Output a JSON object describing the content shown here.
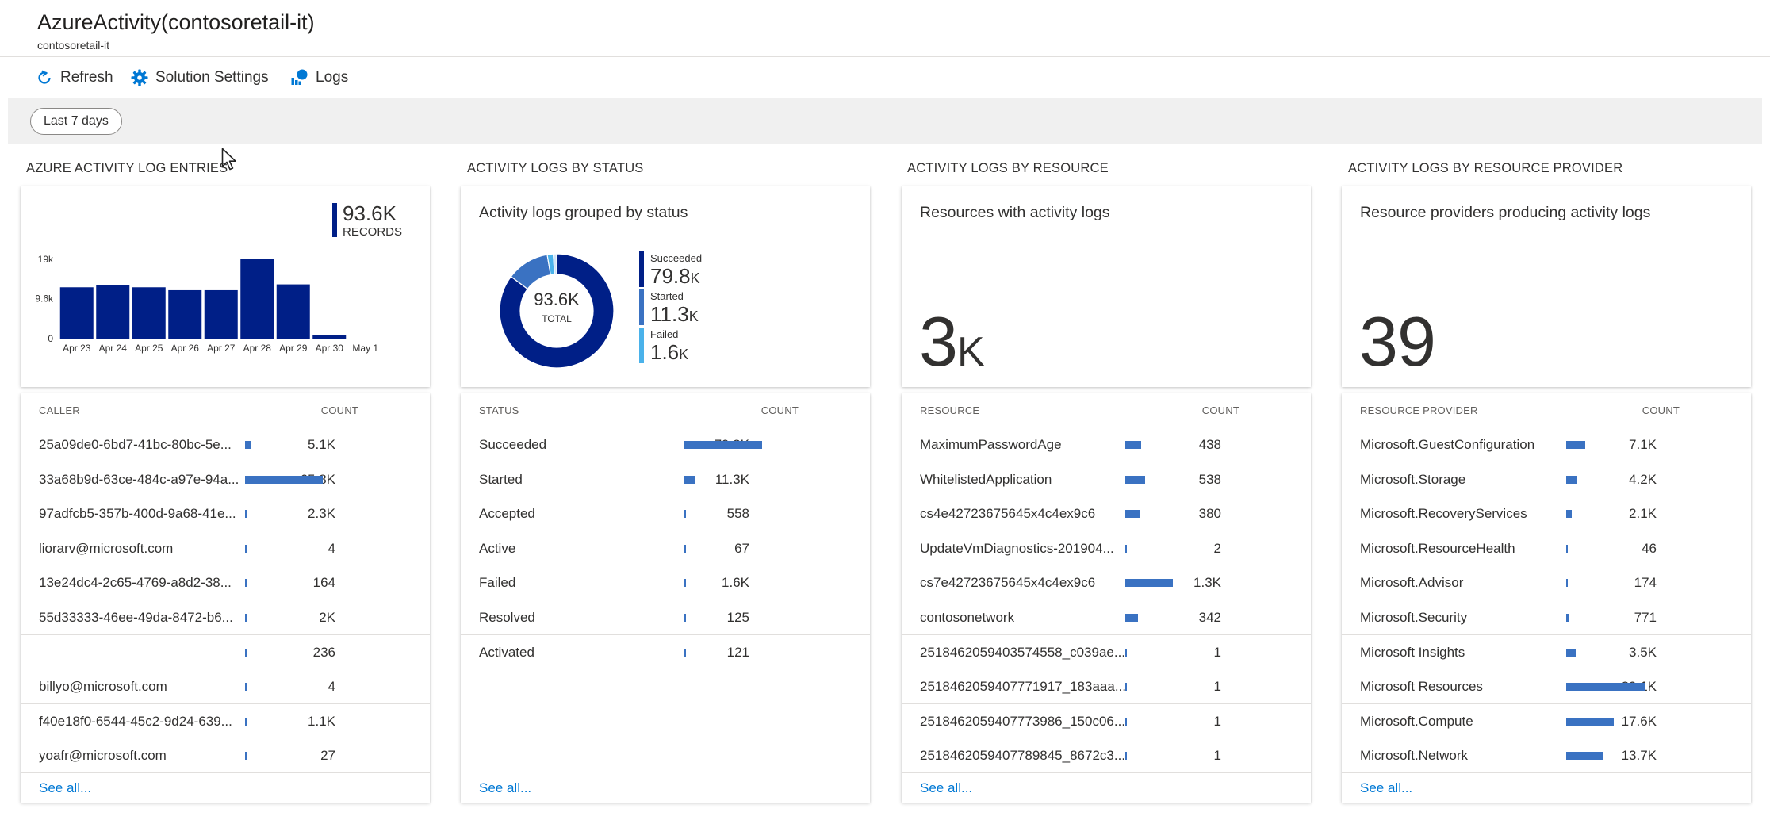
{
  "header": {
    "title": "AzureActivity(contosoretail-it)",
    "subtitle": "contosoretail-it"
  },
  "toolbar": {
    "refresh_label": "Refresh",
    "settings_label": "Solution Settings",
    "logs_label": "Logs"
  },
  "filter": {
    "time_range": "Last 7 days"
  },
  "colors": {
    "accent": "#0078d4",
    "dark_bar": "#001f87",
    "list_bar": "#3a72c2",
    "started": "#3a72c2",
    "failed": "#4ab2ea",
    "pending": "#cfe4f7"
  },
  "panels": {
    "entries": {
      "section_title": "AZURE ACTIVITY LOG ENTRIES",
      "total": "93.6K",
      "total_label": "RECORDS",
      "col_name": "CALLER",
      "col_count": "COUNT",
      "rows": [
        {
          "name": "25a09de0-6bd7-41bc-80bc-5e...",
          "count": "5.1K",
          "value": 5100
        },
        {
          "name": "33a68b9d-63ce-484c-a97e-94a...",
          "count": "65.8K",
          "value": 65800
        },
        {
          "name": "97adfcb5-357b-400d-9a68-41e...",
          "count": "2.3K",
          "value": 2300
        },
        {
          "name": "liorarv@microsoft.com",
          "count": "4",
          "value": 4
        },
        {
          "name": "13e24dc4-2c65-4769-a8d2-38...",
          "count": "164",
          "value": 164
        },
        {
          "name": "55d33333-46ee-49da-8472-b6...",
          "count": "2K",
          "value": 2000
        },
        {
          "name": "",
          "count": "236",
          "value": 236
        },
        {
          "name": "billyo@microsoft.com",
          "count": "4",
          "value": 4
        },
        {
          "name": "f40e18f0-6544-45c2-9d24-639...",
          "count": "1.1K",
          "value": 1100
        },
        {
          "name": "yoafr@microsoft.com",
          "count": "27",
          "value": 27
        }
      ],
      "see_all": "See all..."
    },
    "status": {
      "section_title": "ACTIVITY LOGS BY STATUS",
      "heading": "Activity logs grouped by status",
      "total": "93.6K",
      "total_label": "TOTAL",
      "legend": [
        {
          "label": "Succeeded",
          "num": "79.8",
          "unit": "K",
          "value": 79800,
          "color": "#001f87"
        },
        {
          "label": "Started",
          "num": "11.3",
          "unit": "K",
          "value": 11300,
          "color": "#3a72c2"
        },
        {
          "label": "Failed",
          "num": "1.6",
          "unit": "K",
          "value": 1600,
          "color": "#4ab2ea"
        }
      ],
      "col_name": "STATUS",
      "col_count": "COUNT",
      "rows": [
        {
          "name": "Succeeded",
          "count": "79.8K",
          "value": 79800
        },
        {
          "name": "Started",
          "count": "11.3K",
          "value": 11300
        },
        {
          "name": "Accepted",
          "count": "558",
          "value": 558
        },
        {
          "name": "Active",
          "count": "67",
          "value": 67
        },
        {
          "name": "Failed",
          "count": "1.6K",
          "value": 1600
        },
        {
          "name": "Resolved",
          "count": "125",
          "value": 125
        },
        {
          "name": "Activated",
          "count": "121",
          "value": 121
        }
      ],
      "see_all": "See all..."
    },
    "resource": {
      "section_title": "ACTIVITY LOGS BY RESOURCE",
      "heading": "Resources with activity logs",
      "big_number": "3",
      "big_unit": "K",
      "col_name": "RESOURCE",
      "col_count": "COUNT",
      "rows": [
        {
          "name": "MaximumPasswordAge",
          "count": "438",
          "value": 438
        },
        {
          "name": "WhitelistedApplication",
          "count": "538",
          "value": 538
        },
        {
          "name": "cs4e42723675645x4c4ex9c6",
          "count": "380",
          "value": 380
        },
        {
          "name": "UpdateVmDiagnostics-201904...",
          "count": "2",
          "value": 2
        },
        {
          "name": "cs7e42723675645x4c4ex9c6",
          "count": "1.3K",
          "value": 1300
        },
        {
          "name": "contosonetwork",
          "count": "342",
          "value": 342
        },
        {
          "name": "2518462059403574558_c039ae...",
          "count": "1",
          "value": 1
        },
        {
          "name": "2518462059407771917_183aaa...",
          "count": "1",
          "value": 1
        },
        {
          "name": "2518462059407773986_150c06...",
          "count": "1",
          "value": 1
        },
        {
          "name": "2518462059407789845_8672c3...",
          "count": "1",
          "value": 1
        }
      ],
      "see_all": "See all..."
    },
    "provider": {
      "section_title": "ACTIVITY LOGS BY RESOURCE PROVIDER",
      "heading": "Resource providers producing activity logs",
      "big_number": "39",
      "col_name": "RESOURCE PROVIDER",
      "col_count": "COUNT",
      "rows": [
        {
          "name": "Microsoft.GuestConfiguration",
          "count": "7.1K",
          "value": 7100
        },
        {
          "name": "Microsoft.Storage",
          "count": "4.2K",
          "value": 4200
        },
        {
          "name": "Microsoft.RecoveryServices",
          "count": "2.1K",
          "value": 2100
        },
        {
          "name": "Microsoft.ResourceHealth",
          "count": "46",
          "value": 46
        },
        {
          "name": "Microsoft.Advisor",
          "count": "174",
          "value": 174
        },
        {
          "name": "Microsoft.Security",
          "count": "771",
          "value": 771
        },
        {
          "name": "Microsoft Insights",
          "count": "3.5K",
          "value": 3500
        },
        {
          "name": "Microsoft Resources",
          "count": "29.1K",
          "value": 29100
        },
        {
          "name": "Microsoft.Compute",
          "count": "17.6K",
          "value": 17600
        },
        {
          "name": "Microsoft.Network",
          "count": "13.7K",
          "value": 13700
        }
      ],
      "see_all": "See all..."
    }
  },
  "chart_data": {
    "type": "bar",
    "categories": [
      "Apr 23",
      "Apr 24",
      "Apr 25",
      "Apr 26",
      "Apr 27",
      "Apr 28",
      "Apr 29",
      "Apr 30",
      "May 1"
    ],
    "values": [
      12300,
      12900,
      12300,
      11600,
      11600,
      19000,
      13000,
      800,
      null
    ],
    "ytick_labels": [
      "19k",
      "9.6k",
      "0"
    ],
    "ytick_values": [
      19000,
      9600,
      0
    ],
    "ylim": [
      0,
      19000
    ],
    "title": "",
    "xlabel": "",
    "ylabel": "",
    "grid": false
  }
}
